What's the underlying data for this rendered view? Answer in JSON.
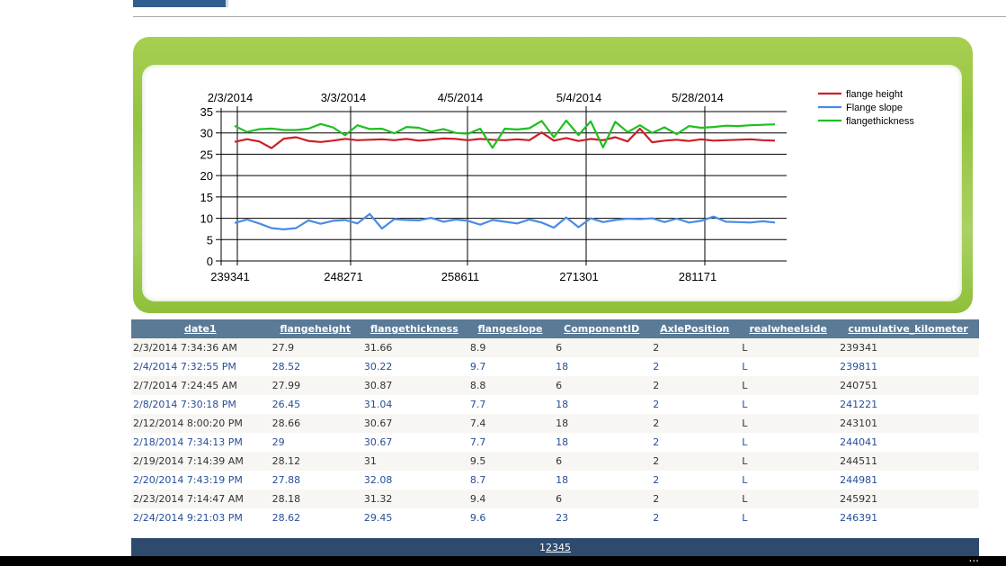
{
  "chart_data": {
    "type": "line",
    "x_top_labels": [
      "2/3/2014",
      "3/3/2014",
      "4/5/2014",
      "5/4/2014",
      "5/28/2014"
    ],
    "x_bottom_labels": [
      "239341",
      "248271",
      "258611",
      "271301",
      "281171"
    ],
    "ylim": [
      0,
      35
    ],
    "yticks": [
      0,
      5,
      10,
      15,
      20,
      25,
      30,
      35
    ],
    "grid": true,
    "legend_position": "top-right",
    "series": [
      {
        "name": "flange height",
        "color": "#cc1f27",
        "values": [
          27.9,
          28.52,
          27.99,
          26.45,
          28.66,
          29,
          28.12,
          27.88,
          28.18,
          28.62,
          28.3,
          28.4,
          28.5,
          28.3,
          28.6,
          28.2,
          28.4,
          28.7,
          28.6,
          28.3,
          28.6,
          28.4,
          28.3,
          28.5,
          28.3,
          30.1,
          28.2,
          28.8,
          28.1,
          28.6,
          28.3,
          29.0,
          28.0,
          31.0,
          27.8,
          28.2,
          28.4,
          28.1,
          28.5,
          28.2,
          28.3,
          28.4,
          28.5,
          28.3,
          28.2
        ]
      },
      {
        "name": "Flange slope",
        "color": "#4a8be6",
        "values": [
          8.9,
          9.7,
          8.8,
          7.7,
          7.4,
          7.7,
          9.5,
          8.7,
          9.4,
          9.6,
          8.8,
          11.0,
          7.6,
          9.8,
          9.6,
          9.5,
          10.1,
          9.2,
          9.7,
          9.4,
          8.5,
          9.6,
          9.2,
          8.8,
          9.7,
          9.0,
          7.8,
          10.2,
          7.9,
          10.0,
          9.1,
          9.6,
          9.9,
          9.8,
          10.0,
          9.1,
          9.9,
          9.0,
          9.4,
          10.4,
          9.2,
          9.1,
          9.0,
          9.3,
          9.0
        ]
      },
      {
        "name": "flangethickness",
        "color": "#1fbf1f",
        "values": [
          31.66,
          30.22,
          30.87,
          31.04,
          30.67,
          30.67,
          31,
          32.08,
          31.32,
          29.45,
          31.8,
          30.9,
          31.0,
          29.9,
          31.4,
          31.2,
          30.3,
          30.9,
          30.0,
          29.8,
          31.0,
          26.5,
          31.0,
          30.8,
          31.1,
          32.8,
          29.0,
          32.9,
          29.5,
          32.7,
          26.6,
          32.6,
          30.2,
          31.8,
          30.0,
          31.3,
          29.7,
          31.6,
          31.2,
          31.4,
          31.7,
          31.6,
          31.8,
          31.9,
          32.0
        ]
      }
    ]
  },
  "table": {
    "columns": [
      "date1",
      "flangeheight",
      "flangethickness",
      "flangeslope",
      "ComponentID",
      "AxlePosition",
      "realwheelside",
      "cumulative_kilometer"
    ],
    "rows": [
      [
        "2/3/2014 7:34:36 AM",
        "27.9",
        "31.66",
        "8.9",
        "6",
        "2",
        "L",
        "239341"
      ],
      [
        "2/4/2014 7:32:55 PM",
        "28.52",
        "30.22",
        "9.7",
        "18",
        "2",
        "L",
        "239811"
      ],
      [
        "2/7/2014 7:24:45 AM",
        "27.99",
        "30.87",
        "8.8",
        "6",
        "2",
        "L",
        "240751"
      ],
      [
        "2/8/2014 7:30:18 PM",
        "26.45",
        "31.04",
        "7.7",
        "18",
        "2",
        "L",
        "241221"
      ],
      [
        "2/12/2014 8:00:20 PM",
        "28.66",
        "30.67",
        "7.4",
        "18",
        "2",
        "L",
        "243101"
      ],
      [
        "2/18/2014 7:34:13 PM",
        "29",
        "30.67",
        "7.7",
        "18",
        "2",
        "L",
        "244041"
      ],
      [
        "2/19/2014 7:14:39 AM",
        "28.12",
        "31",
        "9.5",
        "6",
        "2",
        "L",
        "244511"
      ],
      [
        "2/20/2014 7:43:19 PM",
        "27.88",
        "32.08",
        "8.7",
        "18",
        "2",
        "L",
        "244981"
      ],
      [
        "2/23/2014 7:14:47 AM",
        "28.18",
        "31.32",
        "9.4",
        "6",
        "2",
        "L",
        "245921"
      ],
      [
        "2/24/2014 9:21:03 PM",
        "28.62",
        "29.45",
        "9.6",
        "23",
        "2",
        "L",
        "246391"
      ]
    ]
  },
  "pager": {
    "current": "1",
    "pages": [
      "2",
      "3",
      "4",
      "5"
    ]
  },
  "ellipsis": "..."
}
